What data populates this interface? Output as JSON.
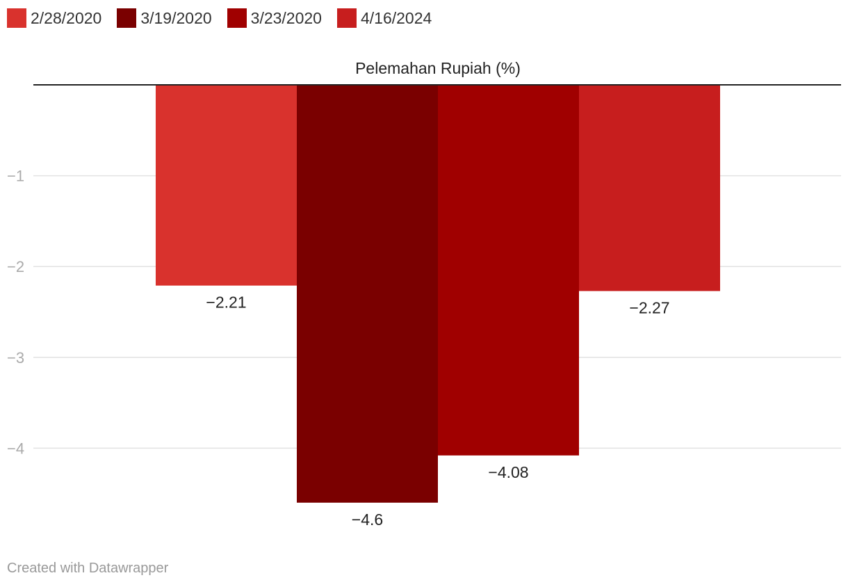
{
  "chart_data": {
    "type": "bar",
    "title": "Pelemahan Rupiah (%)",
    "xlabel": "",
    "ylabel": "",
    "categories": [
      "2/28/2020",
      "3/19/2020",
      "3/23/2020",
      "4/16/2024"
    ],
    "values": [
      -2.21,
      -4.6,
      -4.08,
      -2.27
    ],
    "value_labels": [
      "−2.21",
      "−4.6",
      "−4.08",
      "−2.27"
    ],
    "colors": [
      "#d9322d",
      "#7a0000",
      "#a00000",
      "#c71e1e"
    ],
    "ylim": [
      -4.6,
      0
    ],
    "yticks": [
      -1,
      -2,
      -3,
      -4
    ],
    "ytick_labels": [
      "−1",
      "−2",
      "−3",
      "−4"
    ],
    "grid": true,
    "legend": "top-left"
  },
  "legend": {
    "items": [
      {
        "label": "2/28/2020",
        "color": "#d9322d"
      },
      {
        "label": "3/19/2020",
        "color": "#7a0000"
      },
      {
        "label": "3/23/2020",
        "color": "#a00000"
      },
      {
        "label": "4/16/2024",
        "color": "#c71e1e"
      }
    ]
  },
  "footer": {
    "credit": "Created with Datawrapper"
  }
}
